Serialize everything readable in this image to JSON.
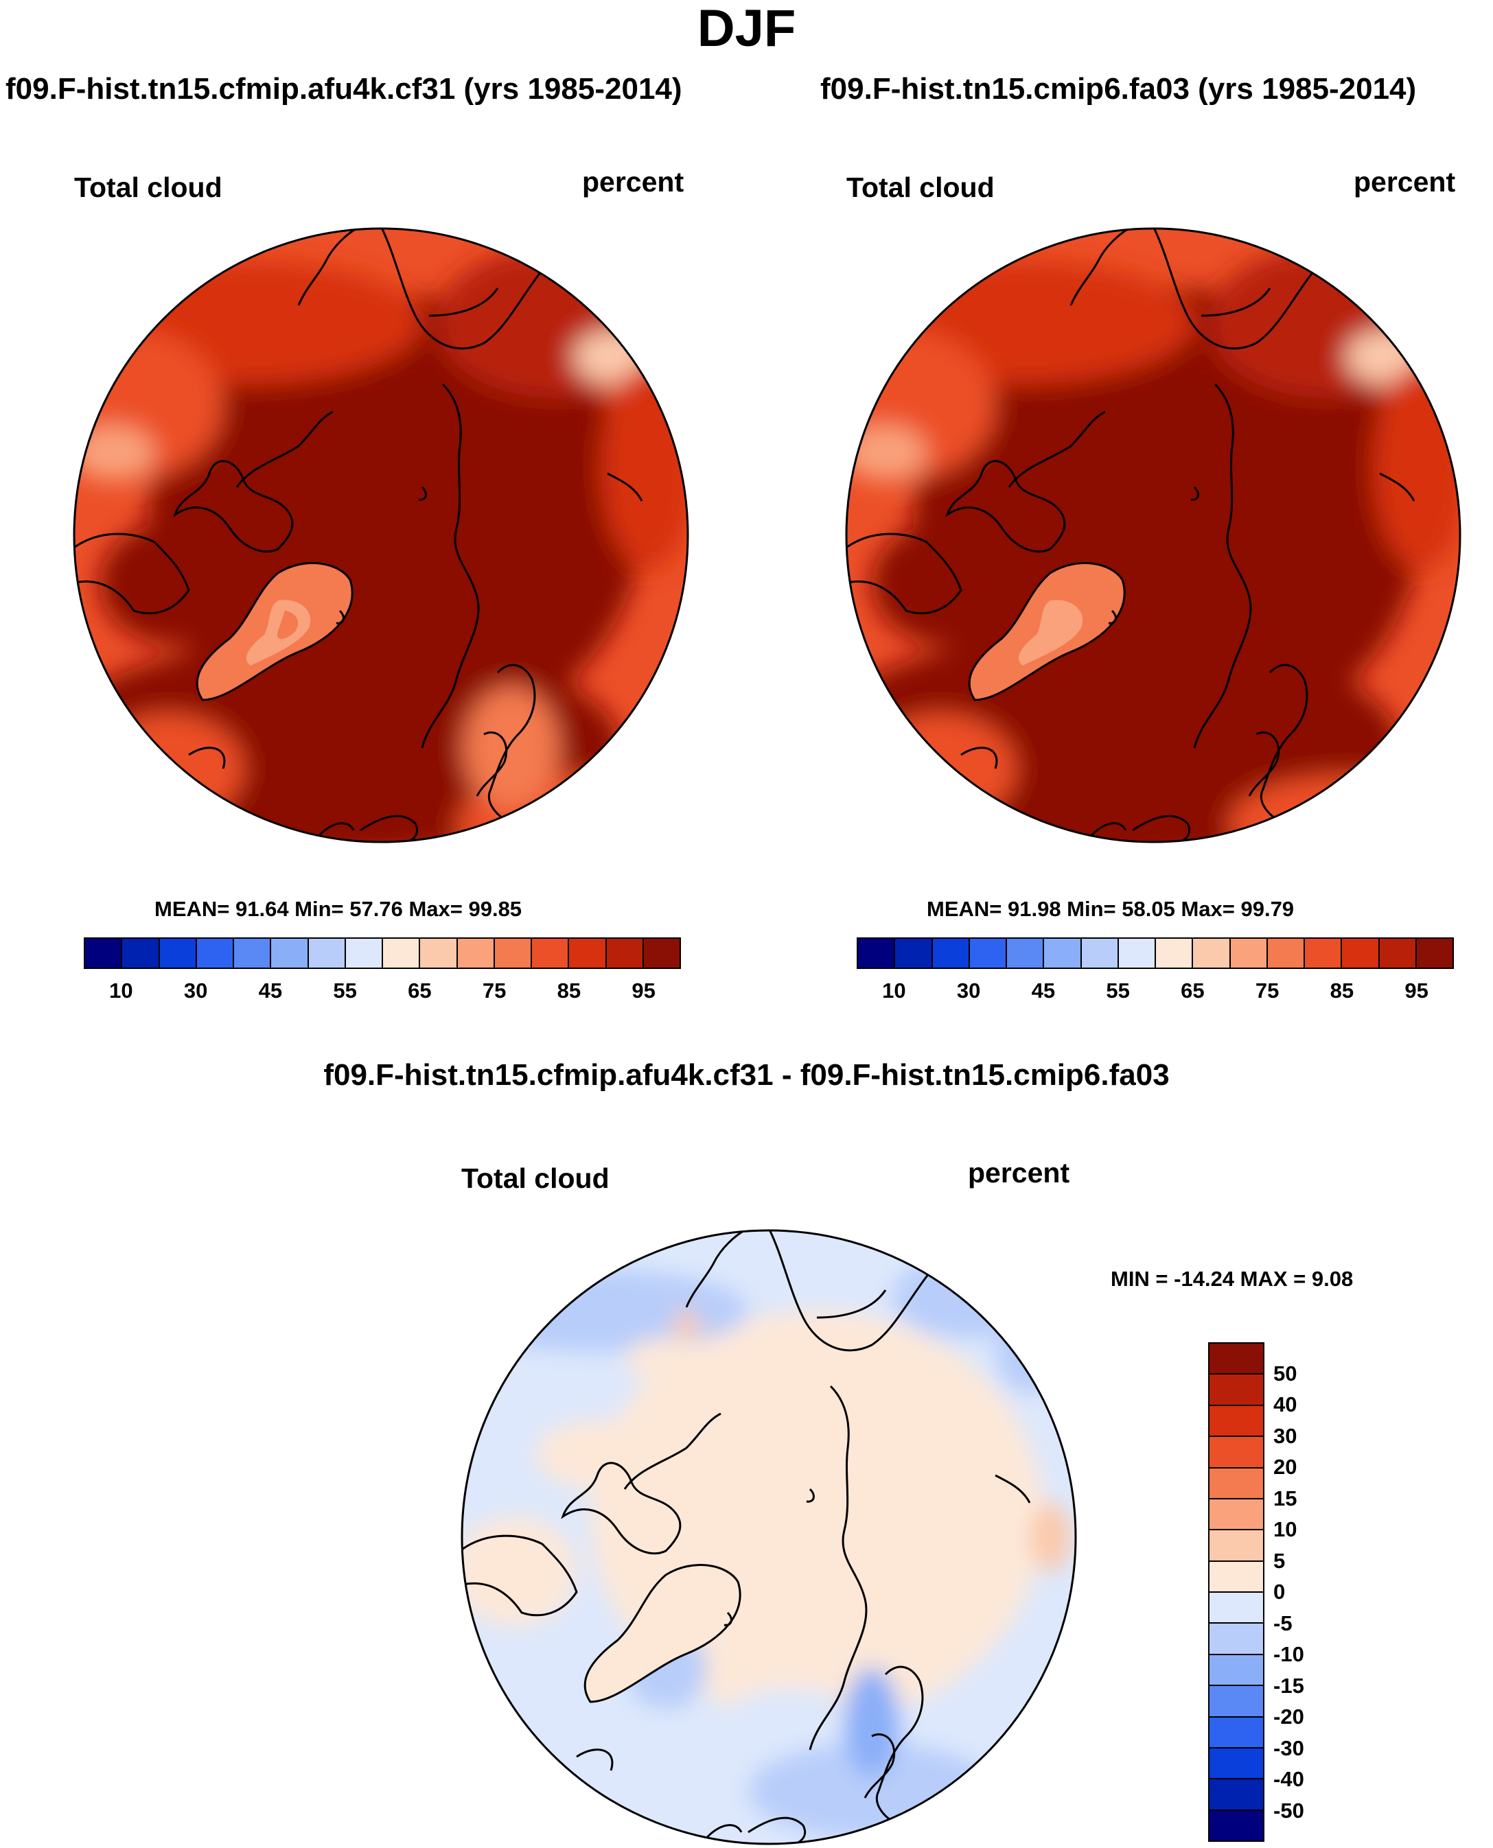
{
  "page": {
    "title": "DJF"
  },
  "panels": [
    {
      "run": "f09.F-hist.tn15.cfmip.afu4k.cf31 (yrs 1985-2014)",
      "variable": "Total cloud",
      "units": "percent",
      "stats": "MEAN=  91.64  Min=  57.76  Max=  99.85"
    },
    {
      "run": "f09.F-hist.tn15.cmip6.fa03 (yrs 1985-2014)",
      "variable": "Total cloud",
      "units": "percent",
      "stats": "MEAN=  91.98  Min=  58.05  Max=  99.79"
    }
  ],
  "difference": {
    "title": "f09.F-hist.tn15.cfmip.afu4k.cf31 - f09.F-hist.tn15.cmip6.fa03",
    "variable": "Total cloud",
    "units": "percent",
    "stats": "MIN = -14.24 MAX =   9.08"
  },
  "chart_data": [
    {
      "type": "heatmap",
      "projection": "north-polar-stereographic",
      "title": "f09.F-hist.tn15.cfmip.afu4k.cf31 (yrs 1985-2014)",
      "left_label": "Total cloud",
      "right_label": "percent",
      "mean": 91.64,
      "min": 57.76,
      "max": 99.85,
      "colorbar": {
        "levels": [
          10,
          20,
          30,
          40,
          45,
          50,
          55,
          60,
          65,
          70,
          75,
          80,
          85,
          90,
          95
        ],
        "tick_labels": [
          "10",
          "30",
          "45",
          "55",
          "65",
          "75",
          "85",
          "95"
        ],
        "colors": [
          "#00007f",
          "#0022b0",
          "#0a3fdc",
          "#2d63f0",
          "#5a88f5",
          "#8aaef8",
          "#b8cdfa",
          "#dde8fc",
          "#fde8d8",
          "#fbc9ac",
          "#f9a27c",
          "#f47a4f",
          "#ec5028",
          "#d7310f",
          "#b8200a",
          "#8a0f04"
        ]
      }
    },
    {
      "type": "heatmap",
      "projection": "north-polar-stereographic",
      "title": "f09.F-hist.tn15.cmip6.fa03 (yrs 1985-2014)",
      "left_label": "Total cloud",
      "right_label": "percent",
      "mean": 91.98,
      "min": 58.05,
      "max": 99.79,
      "colorbar": {
        "levels": [
          10,
          20,
          30,
          40,
          45,
          50,
          55,
          60,
          65,
          70,
          75,
          80,
          85,
          90,
          95
        ],
        "tick_labels": [
          "10",
          "30",
          "45",
          "55",
          "65",
          "75",
          "85",
          "95"
        ],
        "colors": [
          "#00007f",
          "#0022b0",
          "#0a3fdc",
          "#2d63f0",
          "#5a88f5",
          "#8aaef8",
          "#b8cdfa",
          "#dde8fc",
          "#fde8d8",
          "#fbc9ac",
          "#f9a27c",
          "#f47a4f",
          "#ec5028",
          "#d7310f",
          "#b8200a",
          "#8a0f04"
        ]
      }
    },
    {
      "type": "heatmap",
      "projection": "north-polar-stereographic",
      "title": "f09.F-hist.tn15.cfmip.afu4k.cf31 - f09.F-hist.tn15.cmip6.fa03",
      "left_label": "Total cloud",
      "right_label": "percent",
      "min": -14.24,
      "max": 9.08,
      "colorbar": {
        "levels": [
          50,
          40,
          30,
          20,
          15,
          10,
          5,
          0,
          -5,
          -10,
          -15,
          -20,
          -30,
          -40,
          -50
        ],
        "tick_labels": [
          "50",
          "40",
          "30",
          "20",
          "15",
          "10",
          "5",
          "0",
          "-5",
          "-10",
          "-15",
          "-20",
          "-30",
          "-40",
          "-50"
        ],
        "colors": [
          "#8a0f04",
          "#b8200a",
          "#d7310f",
          "#ec5028",
          "#f47a4f",
          "#f9a27c",
          "#fbc9ac",
          "#fde8d8",
          "#dde8fc",
          "#b8cdfa",
          "#8aaef8",
          "#5a88f5",
          "#2d63f0",
          "#0a3fdc",
          "#0022b0",
          "#00007f"
        ]
      }
    }
  ]
}
